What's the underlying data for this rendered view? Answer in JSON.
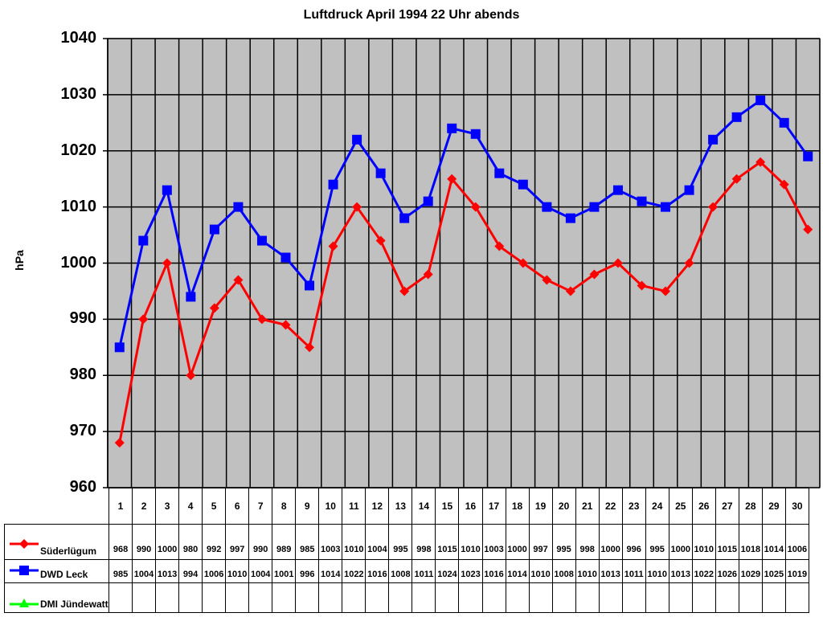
{
  "chart_data": {
    "type": "line",
    "title": "Luftdruck April 1994 22 Uhr abends",
    "xlabel": "",
    "ylabel": "hPa",
    "ylim": [
      960,
      1040
    ],
    "yticks": [
      960,
      970,
      980,
      990,
      1000,
      1010,
      1020,
      1030,
      1040
    ],
    "grid": true,
    "legend_position": "data-table-left",
    "categories": [
      "1",
      "2",
      "3",
      "4",
      "5",
      "6",
      "7",
      "8",
      "9",
      "10",
      "11",
      "12",
      "13",
      "14",
      "15",
      "16",
      "17",
      "18",
      "19",
      "20",
      "21",
      "22",
      "23",
      "24",
      "25",
      "26",
      "27",
      "28",
      "29",
      "30"
    ],
    "series": [
      {
        "name": "Süderlügum",
        "color": "#ff0000",
        "marker": "diamond",
        "values": [
          968,
          990,
          1000,
          980,
          992,
          997,
          990,
          989,
          985,
          1003,
          1010,
          1004,
          995,
          998,
          1015,
          1010,
          1003,
          1000,
          997,
          995,
          998,
          1000,
          996,
          995,
          1000,
          1010,
          1015,
          1018,
          1014,
          1006
        ]
      },
      {
        "name": "DWD Leck",
        "color": "#0000ff",
        "marker": "square",
        "values": [
          985,
          1004,
          1013,
          994,
          1006,
          1010,
          1004,
          1001,
          996,
          1014,
          1022,
          1016,
          1008,
          1011,
          1024,
          1023,
          1016,
          1014,
          1010,
          1008,
          1010,
          1013,
          1011,
          1010,
          1013,
          1022,
          1026,
          1029,
          1025,
          1019
        ]
      },
      {
        "name": "DMI Jündewatt",
        "color": "#00ff00",
        "marker": "triangle",
        "values": [
          null,
          null,
          null,
          null,
          null,
          null,
          null,
          null,
          null,
          null,
          null,
          null,
          null,
          null,
          null,
          null,
          null,
          null,
          null,
          null,
          null,
          null,
          null,
          null,
          null,
          null,
          null,
          null,
          null,
          null
        ]
      }
    ]
  },
  "colors": {
    "plot_bg": "#c0c0c0",
    "grid": "#000000"
  }
}
